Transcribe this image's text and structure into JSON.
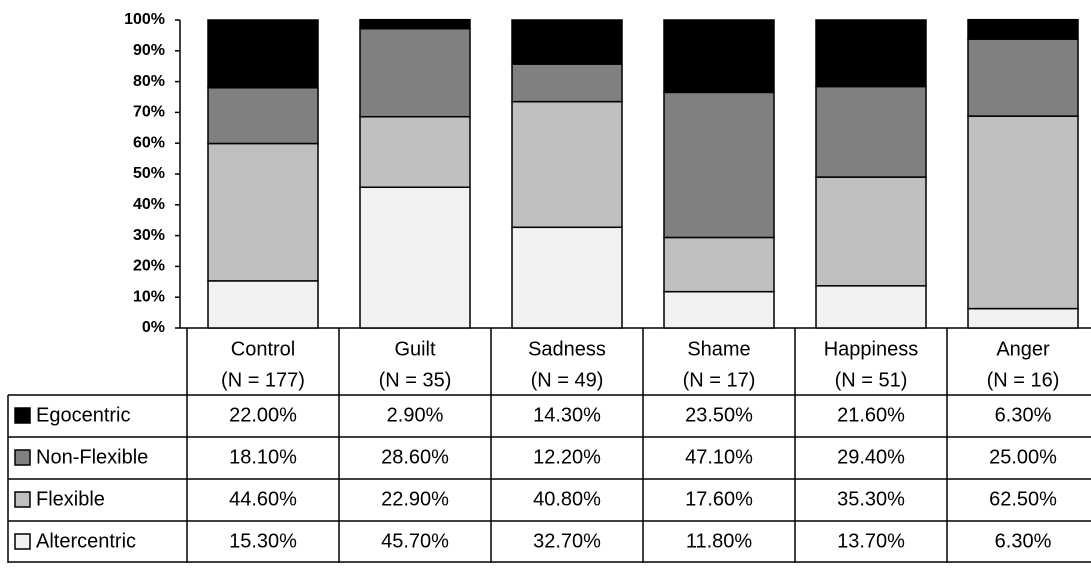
{
  "chart_data": {
    "type": "stacked_bar",
    "categories": [
      "Control",
      "Guilt",
      "Sadness",
      "Shame",
      "Happiness",
      "Anger"
    ],
    "category_notes": [
      "(N = 177)",
      "(N = 35)",
      "(N = 49)",
      "(N = 17)",
      "(N = 51)",
      "(N = 16)"
    ],
    "series": [
      {
        "name": "Egocentric",
        "color": "#000000",
        "values": [
          22.0,
          2.9,
          14.3,
          23.5,
          21.6,
          6.3
        ],
        "value_labels": [
          "22.00%",
          "2.90%",
          "14.30%",
          "23.50%",
          "21.60%",
          "6.30%"
        ]
      },
      {
        "name": "Non-Flexible",
        "color": "#808080",
        "values": [
          18.1,
          28.6,
          12.2,
          47.1,
          29.4,
          25.0
        ],
        "value_labels": [
          "18.10%",
          "28.60%",
          "12.20%",
          "47.10%",
          "29.40%",
          "25.00%"
        ]
      },
      {
        "name": "Flexible",
        "color": "#bfbfbf",
        "values": [
          44.6,
          22.9,
          40.8,
          17.6,
          35.3,
          62.5
        ],
        "value_labels": [
          "44.60%",
          "22.90%",
          "40.80%",
          "17.60%",
          "35.30%",
          "62.50%"
        ]
      },
      {
        "name": "Altercentric",
        "color": "#f2f2f2",
        "values": [
          15.3,
          45.7,
          32.7,
          11.8,
          13.7,
          6.3
        ],
        "value_labels": [
          "15.30%",
          "45.70%",
          "32.70%",
          "11.80%",
          "13.70%",
          "6.30%"
        ]
      }
    ],
    "ylim": [
      0,
      100
    ],
    "yticks": [
      {
        "value": 0,
        "label": "0%"
      },
      {
        "value": 10,
        "label": "10%"
      },
      {
        "value": 20,
        "label": "20%"
      },
      {
        "value": 30,
        "label": "30%"
      },
      {
        "value": 40,
        "label": "40%"
      },
      {
        "value": 50,
        "label": "50%"
      },
      {
        "value": 60,
        "label": "60%"
      },
      {
        "value": 70,
        "label": "70%"
      },
      {
        "value": 80,
        "label": "80%"
      },
      {
        "value": 90,
        "label": "90%"
      },
      {
        "value": 100,
        "label": "100%"
      }
    ],
    "grid": false
  }
}
